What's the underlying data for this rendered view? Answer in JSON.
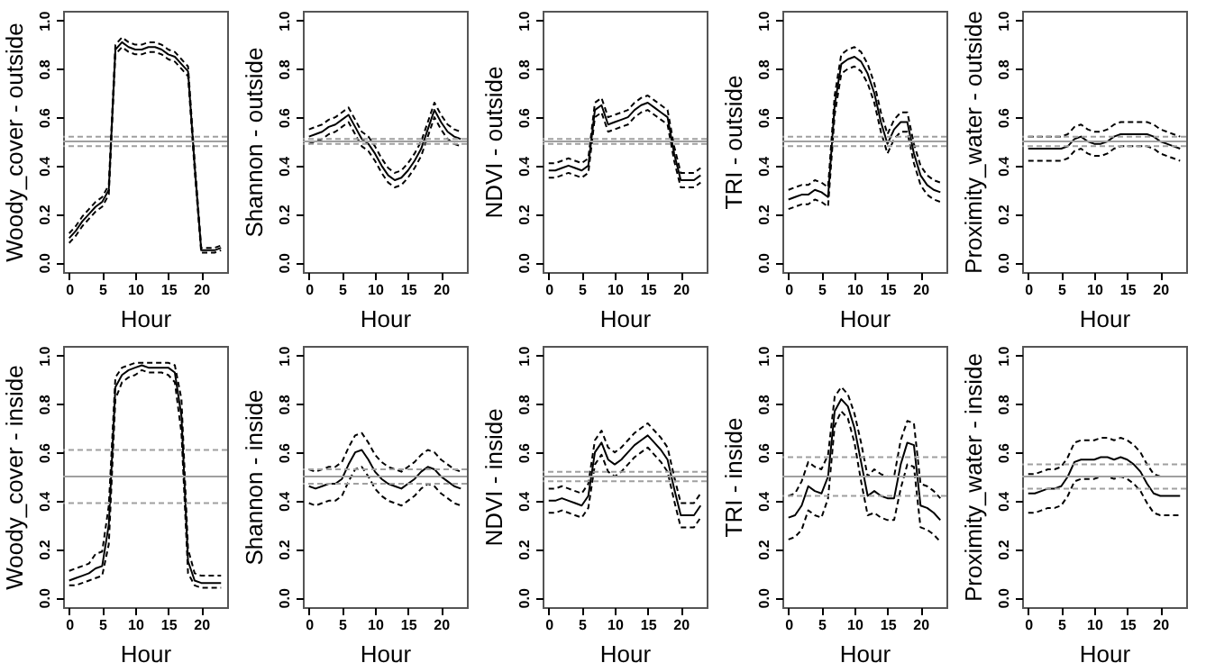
{
  "chart_data": [
    {
      "type": "line",
      "xlabel": "Hour",
      "ylabel": "Woody_cover - outside",
      "x": [
        0,
        1,
        2,
        3,
        4,
        5,
        6,
        7,
        8,
        9,
        10,
        11,
        12,
        13,
        14,
        15,
        16,
        17,
        18,
        19,
        20,
        21,
        22,
        23
      ],
      "xlim": [
        -0.92,
        23.92
      ],
      "xticks": [
        0,
        5,
        10,
        15,
        20
      ],
      "ylim": [
        -0.04,
        1.04
      ],
      "yticks": [
        {
          "value": 0,
          "label": "0.0"
        },
        {
          "value": 0.2,
          "label": "0.2"
        },
        {
          "value": 0.4,
          "label": "0.4"
        },
        {
          "value": 0.6,
          "label": "0.6"
        },
        {
          "value": 0.8,
          "label": "0.8"
        },
        {
          "value": 1,
          "label": "1.0"
        }
      ],
      "series": [
        {
          "color": "#000000",
          "line_style": "solid",
          "values": [
            0.1,
            0.13,
            0.17,
            0.2,
            0.23,
            0.25,
            0.3,
            0.88,
            0.91,
            0.89,
            0.88,
            0.88,
            0.89,
            0.89,
            0.88,
            0.86,
            0.85,
            0.82,
            0.79,
            0.4,
            0.05,
            0.05,
            0.05,
            0.06
          ]
        },
        {
          "color": "#000000",
          "line_style": "dashed",
          "values": [
            0.08,
            0.11,
            0.15,
            0.18,
            0.21,
            0.23,
            0.28,
            0.86,
            0.89,
            0.87,
            0.86,
            0.86,
            0.87,
            0.87,
            0.86,
            0.84,
            0.83,
            0.8,
            0.77,
            0.38,
            0.04,
            0.04,
            0.04,
            0.05
          ]
        },
        {
          "color": "#000000",
          "line_style": "dashed",
          "values": [
            0.12,
            0.15,
            0.19,
            0.22,
            0.25,
            0.27,
            0.32,
            0.9,
            0.93,
            0.91,
            0.9,
            0.9,
            0.91,
            0.91,
            0.9,
            0.88,
            0.87,
            0.84,
            0.81,
            0.42,
            0.06,
            0.06,
            0.06,
            0.07
          ]
        }
      ],
      "ref_lines": [
        {
          "axis": "y",
          "value": 0.5,
          "color": "#a0a0a0",
          "line_style": "solid"
        },
        {
          "axis": "y",
          "value": 0.48,
          "color": "#a0a0a0",
          "line_style": "dashed"
        },
        {
          "axis": "y",
          "value": 0.52,
          "color": "#a0a0a0",
          "line_style": "dashed"
        }
      ]
    },
    {
      "type": "line",
      "xlabel": "Hour",
      "ylabel": "Shannon - outside",
      "x": [
        0,
        1,
        2,
        3,
        4,
        5,
        6,
        7,
        8,
        9,
        10,
        11,
        12,
        13,
        14,
        15,
        16,
        17,
        18,
        19,
        20,
        21,
        22,
        23
      ],
      "xlim": [
        -0.92,
        23.92
      ],
      "xticks": [
        0,
        5,
        10,
        15,
        20
      ],
      "ylim": [
        -0.04,
        1.04
      ],
      "yticks": [
        {
          "value": 0,
          "label": "0.0"
        },
        {
          "value": 0.2,
          "label": "0.2"
        },
        {
          "value": 0.4,
          "label": "0.4"
        },
        {
          "value": 0.6,
          "label": "0.6"
        },
        {
          "value": 0.8,
          "label": "0.8"
        },
        {
          "value": 1,
          "label": "1.0"
        }
      ],
      "series": [
        {
          "color": "#000000",
          "line_style": "solid",
          "values": [
            0.52,
            0.53,
            0.54,
            0.56,
            0.57,
            0.59,
            0.61,
            0.56,
            0.51,
            0.49,
            0.45,
            0.4,
            0.36,
            0.34,
            0.35,
            0.38,
            0.42,
            0.47,
            0.55,
            0.63,
            0.58,
            0.54,
            0.52,
            0.51
          ]
        },
        {
          "color": "#000000",
          "line_style": "dashed",
          "values": [
            0.49,
            0.5,
            0.51,
            0.53,
            0.54,
            0.56,
            0.58,
            0.53,
            0.48,
            0.46,
            0.42,
            0.37,
            0.33,
            0.31,
            0.32,
            0.35,
            0.39,
            0.44,
            0.52,
            0.6,
            0.55,
            0.51,
            0.49,
            0.48
          ]
        },
        {
          "color": "#000000",
          "line_style": "dashed",
          "values": [
            0.55,
            0.56,
            0.57,
            0.59,
            0.6,
            0.62,
            0.64,
            0.59,
            0.54,
            0.52,
            0.48,
            0.43,
            0.39,
            0.37,
            0.38,
            0.41,
            0.45,
            0.5,
            0.58,
            0.66,
            0.61,
            0.57,
            0.55,
            0.54
          ]
        }
      ],
      "ref_lines": [
        {
          "axis": "y",
          "value": 0.5,
          "color": "#a0a0a0",
          "line_style": "solid"
        },
        {
          "axis": "y",
          "value": 0.49,
          "color": "#a0a0a0",
          "line_style": "dashed"
        },
        {
          "axis": "y",
          "value": 0.51,
          "color": "#a0a0a0",
          "line_style": "dashed"
        }
      ]
    },
    {
      "type": "line",
      "xlabel": "Hour",
      "ylabel": "NDVI - outside",
      "x": [
        0,
        1,
        2,
        3,
        4,
        5,
        6,
        7,
        8,
        9,
        10,
        11,
        12,
        13,
        14,
        15,
        16,
        17,
        18,
        19,
        20,
        21,
        22,
        23
      ],
      "xlim": [
        -0.92,
        23.92
      ],
      "xticks": [
        0,
        5,
        10,
        15,
        20
      ],
      "ylim": [
        -0.04,
        1.04
      ],
      "yticks": [
        {
          "value": 0,
          "label": "0.0"
        },
        {
          "value": 0.2,
          "label": "0.2"
        },
        {
          "value": 0.4,
          "label": "0.4"
        },
        {
          "value": 0.6,
          "label": "0.6"
        },
        {
          "value": 0.8,
          "label": "0.8"
        },
        {
          "value": 1,
          "label": "1.0"
        }
      ],
      "series": [
        {
          "color": "#000000",
          "line_style": "solid",
          "values": [
            0.38,
            0.38,
            0.39,
            0.4,
            0.39,
            0.38,
            0.4,
            0.63,
            0.65,
            0.57,
            0.58,
            0.59,
            0.6,
            0.63,
            0.65,
            0.66,
            0.64,
            0.62,
            0.6,
            0.45,
            0.34,
            0.34,
            0.34,
            0.36
          ]
        },
        {
          "color": "#000000",
          "line_style": "dashed",
          "values": [
            0.35,
            0.35,
            0.36,
            0.37,
            0.36,
            0.35,
            0.37,
            0.6,
            0.62,
            0.54,
            0.55,
            0.56,
            0.57,
            0.6,
            0.62,
            0.63,
            0.61,
            0.59,
            0.57,
            0.42,
            0.31,
            0.31,
            0.31,
            0.33
          ]
        },
        {
          "color": "#000000",
          "line_style": "dashed",
          "values": [
            0.41,
            0.41,
            0.42,
            0.43,
            0.42,
            0.41,
            0.43,
            0.66,
            0.68,
            0.6,
            0.61,
            0.62,
            0.63,
            0.66,
            0.68,
            0.69,
            0.67,
            0.65,
            0.63,
            0.48,
            0.37,
            0.37,
            0.37,
            0.39
          ]
        }
      ],
      "ref_lines": [
        {
          "axis": "y",
          "value": 0.5,
          "color": "#a0a0a0",
          "line_style": "solid"
        },
        {
          "axis": "y",
          "value": 0.49,
          "color": "#a0a0a0",
          "line_style": "dashed"
        },
        {
          "axis": "y",
          "value": 0.51,
          "color": "#a0a0a0",
          "line_style": "dashed"
        }
      ]
    },
    {
      "type": "line",
      "xlabel": "Hour",
      "ylabel": "TRI - outside",
      "x": [
        0,
        1,
        2,
        3,
        4,
        5,
        6,
        7,
        8,
        9,
        10,
        11,
        12,
        13,
        14,
        15,
        16,
        17,
        18,
        19,
        20,
        21,
        22,
        23
      ],
      "xlim": [
        -0.92,
        23.92
      ],
      "xticks": [
        0,
        5,
        10,
        15,
        20
      ],
      "ylim": [
        -0.04,
        1.04
      ],
      "yticks": [
        {
          "value": 0,
          "label": "0.0"
        },
        {
          "value": 0.2,
          "label": "0.2"
        },
        {
          "value": 0.4,
          "label": "0.4"
        },
        {
          "value": 0.6,
          "label": "0.6"
        },
        {
          "value": 0.8,
          "label": "0.8"
        },
        {
          "value": 1,
          "label": "1.0"
        }
      ],
      "series": [
        {
          "color": "#000000",
          "line_style": "solid",
          "values": [
            0.26,
            0.27,
            0.28,
            0.28,
            0.3,
            0.29,
            0.27,
            0.65,
            0.82,
            0.84,
            0.85,
            0.83,
            0.78,
            0.7,
            0.58,
            0.49,
            0.55,
            0.58,
            0.58,
            0.45,
            0.36,
            0.32,
            0.3,
            0.29
          ]
        },
        {
          "color": "#000000",
          "line_style": "dashed",
          "values": [
            0.22,
            0.23,
            0.24,
            0.24,
            0.26,
            0.25,
            0.23,
            0.61,
            0.78,
            0.8,
            0.81,
            0.79,
            0.74,
            0.66,
            0.54,
            0.45,
            0.51,
            0.54,
            0.54,
            0.41,
            0.32,
            0.28,
            0.26,
            0.25
          ]
        },
        {
          "color": "#000000",
          "line_style": "dashed",
          "values": [
            0.3,
            0.31,
            0.32,
            0.32,
            0.34,
            0.33,
            0.31,
            0.69,
            0.86,
            0.88,
            0.89,
            0.87,
            0.82,
            0.74,
            0.62,
            0.53,
            0.59,
            0.62,
            0.62,
            0.49,
            0.4,
            0.36,
            0.34,
            0.33
          ]
        }
      ],
      "ref_lines": [
        {
          "axis": "y",
          "value": 0.5,
          "color": "#a0a0a0",
          "line_style": "solid"
        },
        {
          "axis": "y",
          "value": 0.48,
          "color": "#a0a0a0",
          "line_style": "dashed"
        },
        {
          "axis": "y",
          "value": 0.52,
          "color": "#a0a0a0",
          "line_style": "dashed"
        }
      ]
    },
    {
      "type": "line",
      "xlabel": "Hour",
      "ylabel": "Proximity_water - outside",
      "x": [
        0,
        1,
        2,
        3,
        4,
        5,
        6,
        7,
        8,
        9,
        10,
        11,
        12,
        13,
        14,
        15,
        16,
        17,
        18,
        19,
        20,
        21,
        22,
        23
      ],
      "xlim": [
        -0.92,
        23.92
      ],
      "xticks": [
        0,
        5,
        10,
        15,
        20
      ],
      "ylim": [
        -0.04,
        1.04
      ],
      "yticks": [
        {
          "value": 0,
          "label": "0.0"
        },
        {
          "value": 0.2,
          "label": "0.2"
        },
        {
          "value": 0.4,
          "label": "0.4"
        },
        {
          "value": 0.6,
          "label": "0.6"
        },
        {
          "value": 0.8,
          "label": "0.8"
        },
        {
          "value": 1,
          "label": "1.0"
        }
      ],
      "series": [
        {
          "color": "#000000",
          "line_style": "solid",
          "values": [
            0.47,
            0.47,
            0.47,
            0.47,
            0.47,
            0.47,
            0.48,
            0.51,
            0.52,
            0.5,
            0.49,
            0.49,
            0.5,
            0.52,
            0.53,
            0.53,
            0.53,
            0.53,
            0.53,
            0.52,
            0.5,
            0.49,
            0.48,
            0.47
          ]
        },
        {
          "color": "#000000",
          "line_style": "dashed",
          "values": [
            0.42,
            0.42,
            0.42,
            0.42,
            0.42,
            0.42,
            0.43,
            0.46,
            0.47,
            0.45,
            0.44,
            0.44,
            0.45,
            0.47,
            0.48,
            0.48,
            0.48,
            0.48,
            0.48,
            0.47,
            0.45,
            0.44,
            0.43,
            0.42
          ]
        },
        {
          "color": "#000000",
          "line_style": "dashed",
          "values": [
            0.52,
            0.52,
            0.52,
            0.52,
            0.52,
            0.52,
            0.53,
            0.56,
            0.57,
            0.55,
            0.54,
            0.54,
            0.55,
            0.57,
            0.58,
            0.58,
            0.58,
            0.58,
            0.58,
            0.57,
            0.55,
            0.54,
            0.53,
            0.52
          ]
        }
      ],
      "ref_lines": [
        {
          "axis": "y",
          "value": 0.5,
          "color": "#a0a0a0",
          "line_style": "solid"
        },
        {
          "axis": "y",
          "value": 0.48,
          "color": "#a0a0a0",
          "line_style": "dashed"
        },
        {
          "axis": "y",
          "value": 0.52,
          "color": "#a0a0a0",
          "line_style": "dashed"
        }
      ]
    },
    {
      "type": "line",
      "xlabel": "Hour",
      "ylabel": "Woody_cover - inside",
      "x": [
        0,
        1,
        2,
        3,
        4,
        5,
        6,
        7,
        8,
        9,
        10,
        11,
        12,
        13,
        14,
        15,
        16,
        17,
        18,
        19,
        20,
        21,
        22,
        23
      ],
      "xlim": [
        -0.92,
        23.92
      ],
      "xticks": [
        0,
        5,
        10,
        15,
        20
      ],
      "ylim": [
        -0.04,
        1.04
      ],
      "yticks": [
        {
          "value": 0,
          "label": "0.0"
        },
        {
          "value": 0.2,
          "label": "0.2"
        },
        {
          "value": 0.4,
          "label": "0.4"
        },
        {
          "value": 0.6,
          "label": "0.6"
        },
        {
          "value": 0.8,
          "label": "0.8"
        },
        {
          "value": 1,
          "label": "1.0"
        }
      ],
      "series": [
        {
          "color": "#000000",
          "line_style": "solid",
          "values": [
            0.07,
            0.08,
            0.09,
            0.1,
            0.12,
            0.13,
            0.3,
            0.87,
            0.92,
            0.94,
            0.95,
            0.96,
            0.95,
            0.95,
            0.95,
            0.95,
            0.93,
            0.75,
            0.15,
            0.07,
            0.06,
            0.06,
            0.06,
            0.06
          ]
        },
        {
          "color": "#000000",
          "line_style": "dashed",
          "values": [
            0.05,
            0.05,
            0.06,
            0.07,
            0.08,
            0.09,
            0.22,
            0.82,
            0.89,
            0.91,
            0.92,
            0.94,
            0.93,
            0.93,
            0.93,
            0.92,
            0.89,
            0.68,
            0.1,
            0.05,
            0.04,
            0.04,
            0.04,
            0.04
          ]
        },
        {
          "color": "#000000",
          "line_style": "dashed",
          "values": [
            0.11,
            0.12,
            0.13,
            0.14,
            0.18,
            0.19,
            0.38,
            0.91,
            0.95,
            0.96,
            0.97,
            0.97,
            0.97,
            0.97,
            0.97,
            0.97,
            0.96,
            0.82,
            0.2,
            0.1,
            0.09,
            0.09,
            0.09,
            0.09
          ]
        }
      ],
      "ref_lines": [
        {
          "axis": "y",
          "value": 0.5,
          "color": "#a0a0a0",
          "line_style": "solid"
        },
        {
          "axis": "y",
          "value": 0.39,
          "color": "#a0a0a0",
          "line_style": "dashed"
        },
        {
          "axis": "y",
          "value": 0.61,
          "color": "#a0a0a0",
          "line_style": "dashed"
        }
      ]
    },
    {
      "type": "line",
      "xlabel": "Hour",
      "ylabel": "Shannon - inside",
      "x": [
        0,
        1,
        2,
        3,
        4,
        5,
        6,
        7,
        8,
        9,
        10,
        11,
        12,
        13,
        14,
        15,
        16,
        17,
        18,
        19,
        20,
        21,
        22,
        23
      ],
      "xlim": [
        -0.92,
        23.92
      ],
      "xticks": [
        0,
        5,
        10,
        15,
        20
      ],
      "ylim": [
        -0.04,
        1.04
      ],
      "yticks": [
        {
          "value": 0,
          "label": "0.0"
        },
        {
          "value": 0.2,
          "label": "0.2"
        },
        {
          "value": 0.4,
          "label": "0.4"
        },
        {
          "value": 0.6,
          "label": "0.6"
        },
        {
          "value": 0.8,
          "label": "0.8"
        },
        {
          "value": 1,
          "label": "1.0"
        }
      ],
      "series": [
        {
          "color": "#000000",
          "line_style": "solid",
          "values": [
            0.46,
            0.45,
            0.46,
            0.47,
            0.47,
            0.49,
            0.55,
            0.6,
            0.61,
            0.57,
            0.52,
            0.49,
            0.47,
            0.46,
            0.45,
            0.47,
            0.49,
            0.52,
            0.54,
            0.53,
            0.5,
            0.48,
            0.46,
            0.45
          ]
        },
        {
          "color": "#000000",
          "line_style": "dashed",
          "values": [
            0.39,
            0.38,
            0.39,
            0.4,
            0.4,
            0.42,
            0.48,
            0.53,
            0.54,
            0.5,
            0.45,
            0.42,
            0.4,
            0.39,
            0.38,
            0.4,
            0.42,
            0.45,
            0.47,
            0.46,
            0.43,
            0.41,
            0.39,
            0.38
          ]
        },
        {
          "color": "#000000",
          "line_style": "dashed",
          "values": [
            0.53,
            0.52,
            0.53,
            0.54,
            0.54,
            0.56,
            0.62,
            0.67,
            0.68,
            0.64,
            0.59,
            0.56,
            0.54,
            0.53,
            0.52,
            0.54,
            0.56,
            0.59,
            0.61,
            0.6,
            0.57,
            0.55,
            0.53,
            0.52
          ]
        }
      ],
      "ref_lines": [
        {
          "axis": "y",
          "value": 0.5,
          "color": "#a0a0a0",
          "line_style": "solid"
        },
        {
          "axis": "y",
          "value": 0.47,
          "color": "#a0a0a0",
          "line_style": "dashed"
        },
        {
          "axis": "y",
          "value": 0.53,
          "color": "#a0a0a0",
          "line_style": "dashed"
        }
      ]
    },
    {
      "type": "line",
      "xlabel": "Hour",
      "ylabel": "NDVI - inside",
      "x": [
        0,
        1,
        2,
        3,
        4,
        5,
        6,
        7,
        8,
        9,
        10,
        11,
        12,
        13,
        14,
        15,
        16,
        17,
        18,
        19,
        20,
        21,
        22,
        23
      ],
      "xlim": [
        -0.92,
        23.92
      ],
      "xticks": [
        0,
        5,
        10,
        15,
        20
      ],
      "ylim": [
        -0.04,
        1.04
      ],
      "yticks": [
        {
          "value": 0,
          "label": "0.0"
        },
        {
          "value": 0.2,
          "label": "0.2"
        },
        {
          "value": 0.4,
          "label": "0.4"
        },
        {
          "value": 0.6,
          "label": "0.6"
        },
        {
          "value": 0.8,
          "label": "0.8"
        },
        {
          "value": 1,
          "label": "1.0"
        }
      ],
      "series": [
        {
          "color": "#000000",
          "line_style": "solid",
          "values": [
            0.4,
            0.4,
            0.41,
            0.4,
            0.39,
            0.38,
            0.42,
            0.6,
            0.64,
            0.57,
            0.55,
            0.57,
            0.6,
            0.63,
            0.65,
            0.67,
            0.64,
            0.61,
            0.57,
            0.45,
            0.34,
            0.34,
            0.34,
            0.38
          ]
        },
        {
          "color": "#000000",
          "line_style": "dashed",
          "values": [
            0.35,
            0.35,
            0.36,
            0.35,
            0.34,
            0.33,
            0.37,
            0.55,
            0.59,
            0.52,
            0.5,
            0.52,
            0.55,
            0.58,
            0.6,
            0.62,
            0.59,
            0.56,
            0.52,
            0.4,
            0.29,
            0.29,
            0.29,
            0.33
          ]
        },
        {
          "color": "#000000",
          "line_style": "dashed",
          "values": [
            0.45,
            0.45,
            0.46,
            0.45,
            0.44,
            0.43,
            0.47,
            0.65,
            0.69,
            0.62,
            0.6,
            0.62,
            0.65,
            0.68,
            0.7,
            0.72,
            0.69,
            0.66,
            0.62,
            0.5,
            0.39,
            0.39,
            0.39,
            0.43
          ]
        }
      ],
      "ref_lines": [
        {
          "axis": "y",
          "value": 0.5,
          "color": "#a0a0a0",
          "line_style": "solid"
        },
        {
          "axis": "y",
          "value": 0.48,
          "color": "#a0a0a0",
          "line_style": "dashed"
        },
        {
          "axis": "y",
          "value": 0.52,
          "color": "#a0a0a0",
          "line_style": "dashed"
        }
      ]
    },
    {
      "type": "line",
      "xlabel": "Hour",
      "ylabel": "TRI - inside",
      "x": [
        0,
        1,
        2,
        3,
        4,
        5,
        6,
        7,
        8,
        9,
        10,
        11,
        12,
        13,
        14,
        15,
        16,
        17,
        18,
        19,
        20,
        21,
        22,
        23
      ],
      "xlim": [
        -0.92,
        23.92
      ],
      "xticks": [
        0,
        5,
        10,
        15,
        20
      ],
      "ylim": [
        -0.04,
        1.04
      ],
      "yticks": [
        {
          "value": 0,
          "label": "0.0"
        },
        {
          "value": 0.2,
          "label": "0.2"
        },
        {
          "value": 0.4,
          "label": "0.4"
        },
        {
          "value": 0.6,
          "label": "0.6"
        },
        {
          "value": 0.8,
          "label": "0.8"
        },
        {
          "value": 1,
          "label": "1.0"
        }
      ],
      "series": [
        {
          "color": "#000000",
          "line_style": "solid",
          "values": [
            0.33,
            0.34,
            0.38,
            0.46,
            0.44,
            0.43,
            0.5,
            0.77,
            0.82,
            0.79,
            0.7,
            0.56,
            0.42,
            0.44,
            0.42,
            0.41,
            0.41,
            0.55,
            0.64,
            0.63,
            0.38,
            0.37,
            0.35,
            0.32
          ]
        },
        {
          "color": "#000000",
          "line_style": "dashed",
          "values": [
            0.24,
            0.25,
            0.28,
            0.36,
            0.34,
            0.33,
            0.41,
            0.71,
            0.77,
            0.74,
            0.64,
            0.48,
            0.34,
            0.35,
            0.33,
            0.32,
            0.32,
            0.45,
            0.55,
            0.54,
            0.29,
            0.28,
            0.26,
            0.23
          ]
        },
        {
          "color": "#000000",
          "line_style": "dashed",
          "values": [
            0.42,
            0.43,
            0.48,
            0.56,
            0.54,
            0.53,
            0.59,
            0.83,
            0.87,
            0.84,
            0.76,
            0.64,
            0.5,
            0.53,
            0.51,
            0.5,
            0.5,
            0.65,
            0.73,
            0.72,
            0.47,
            0.46,
            0.44,
            0.41
          ]
        }
      ],
      "ref_lines": [
        {
          "axis": "y",
          "value": 0.5,
          "color": "#a0a0a0",
          "line_style": "solid"
        },
        {
          "axis": "y",
          "value": 0.42,
          "color": "#a0a0a0",
          "line_style": "dashed"
        },
        {
          "axis": "y",
          "value": 0.58,
          "color": "#a0a0a0",
          "line_style": "dashed"
        }
      ]
    },
    {
      "type": "line",
      "xlabel": "Hour",
      "ylabel": "Proximity_water - inside",
      "x": [
        0,
        1,
        2,
        3,
        4,
        5,
        6,
        7,
        8,
        9,
        10,
        11,
        12,
        13,
        14,
        15,
        16,
        17,
        18,
        19,
        20,
        21,
        22,
        23
      ],
      "xlim": [
        -0.92,
        23.92
      ],
      "xticks": [
        0,
        5,
        10,
        15,
        20
      ],
      "ylim": [
        -0.04,
        1.04
      ],
      "yticks": [
        {
          "value": 0,
          "label": "0.0"
        },
        {
          "value": 0.2,
          "label": "0.2"
        },
        {
          "value": 0.4,
          "label": "0.4"
        },
        {
          "value": 0.6,
          "label": "0.6"
        },
        {
          "value": 0.8,
          "label": "0.8"
        },
        {
          "value": 1,
          "label": "1.0"
        }
      ],
      "series": [
        {
          "color": "#000000",
          "line_style": "solid",
          "values": [
            0.43,
            0.43,
            0.44,
            0.45,
            0.45,
            0.46,
            0.5,
            0.56,
            0.57,
            0.57,
            0.57,
            0.58,
            0.58,
            0.57,
            0.58,
            0.57,
            0.55,
            0.52,
            0.47,
            0.43,
            0.42,
            0.42,
            0.42,
            0.42
          ]
        },
        {
          "color": "#000000",
          "line_style": "dashed",
          "values": [
            0.35,
            0.35,
            0.36,
            0.37,
            0.37,
            0.38,
            0.42,
            0.48,
            0.49,
            0.49,
            0.49,
            0.5,
            0.5,
            0.49,
            0.5,
            0.49,
            0.47,
            0.44,
            0.39,
            0.35,
            0.34,
            0.34,
            0.34,
            0.34
          ]
        },
        {
          "color": "#000000",
          "line_style": "dashed",
          "values": [
            0.51,
            0.51,
            0.52,
            0.53,
            0.53,
            0.54,
            0.58,
            0.64,
            0.65,
            0.65,
            0.65,
            0.66,
            0.66,
            0.65,
            0.66,
            0.65,
            0.63,
            0.6,
            0.55,
            0.51,
            0.5,
            0.5,
            0.5,
            0.5
          ]
        }
      ],
      "ref_lines": [
        {
          "axis": "y",
          "value": 0.5,
          "color": "#a0a0a0",
          "line_style": "solid"
        },
        {
          "axis": "y",
          "value": 0.45,
          "color": "#a0a0a0",
          "line_style": "dashed"
        },
        {
          "axis": "y",
          "value": 0.55,
          "color": "#a0a0a0",
          "line_style": "dashed"
        }
      ]
    }
  ]
}
